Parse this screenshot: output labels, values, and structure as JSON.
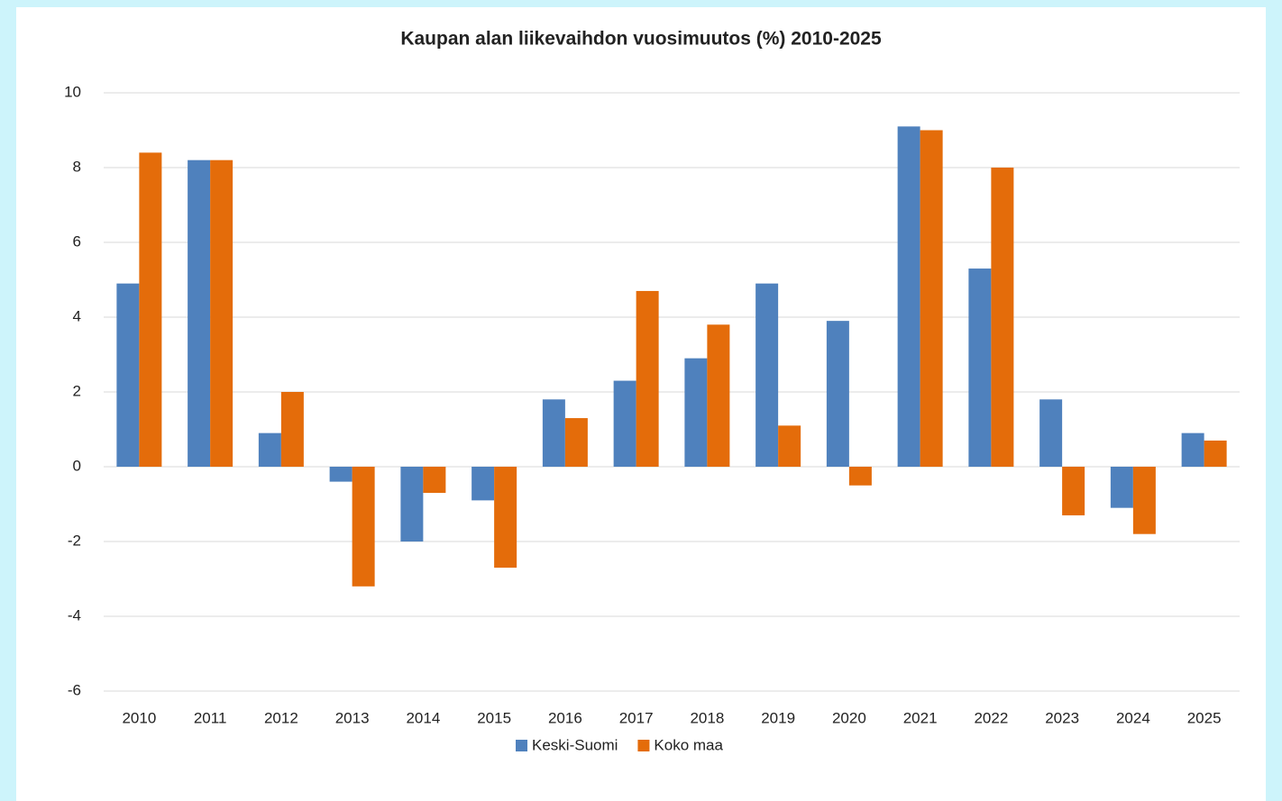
{
  "chart_data": {
    "type": "bar",
    "title": "Kaupan alan liikevaihdon vuosimuutos (%) 2010-2025",
    "categories": [
      "2010",
      "2011",
      "2012",
      "2013",
      "2014",
      "2015",
      "2016",
      "2017",
      "2018",
      "2019",
      "2020",
      "2021",
      "2022",
      "2023",
      "2024",
      "2025"
    ],
    "series": [
      {
        "name": "Keski-Suomi",
        "color": "#4f81bd",
        "values": [
          4.9,
          8.2,
          0.9,
          -0.4,
          -2.0,
          -0.9,
          1.8,
          2.3,
          2.9,
          4.9,
          3.9,
          9.1,
          5.3,
          1.8,
          -1.1,
          0.9
        ]
      },
      {
        "name": "Koko maa",
        "color": "#e46c0a",
        "values": [
          8.4,
          8.2,
          2.0,
          -3.2,
          -0.7,
          -2.7,
          1.3,
          4.7,
          3.8,
          1.1,
          -0.5,
          9.0,
          8.0,
          -1.3,
          -1.8,
          0.7
        ]
      }
    ],
    "ylim": [
      -6,
      10
    ],
    "yticks": [
      -6,
      -4,
      -2,
      0,
      2,
      4,
      6,
      8,
      10
    ],
    "grid": true,
    "legend": "bottom"
  }
}
